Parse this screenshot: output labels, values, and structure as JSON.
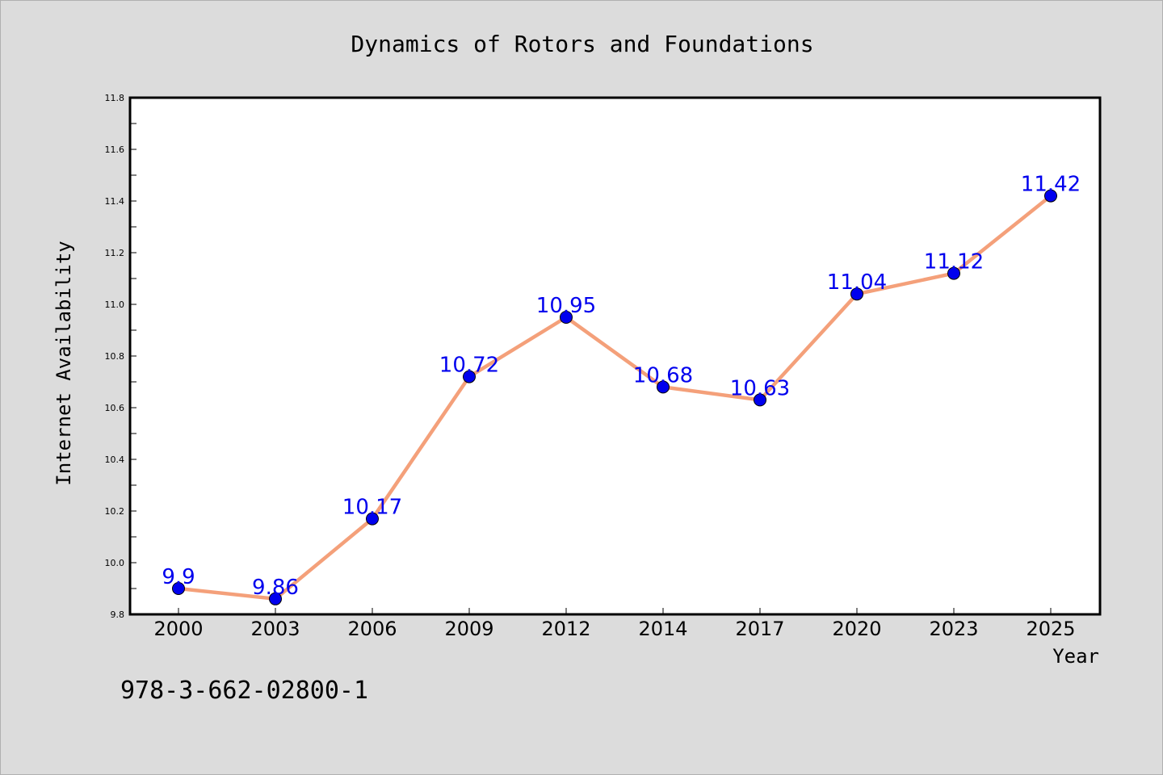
{
  "chart_data": {
    "type": "line",
    "title": "Dynamics of Rotors and Foundations",
    "xlabel": "Year",
    "ylabel": "Internet Availability",
    "categories": [
      "2000",
      "2003",
      "2006",
      "2009",
      "2012",
      "2014",
      "2017",
      "2020",
      "2023",
      "2025"
    ],
    "values": [
      9.9,
      9.86,
      10.17,
      10.72,
      10.95,
      10.68,
      10.63,
      11.04,
      11.12,
      11.42
    ],
    "data_labels": [
      "9.9",
      "9.86",
      "10.17",
      "10.72",
      "10.95",
      "10.68",
      "10.63",
      "11.04",
      "11.12",
      "11.42"
    ],
    "ylim": [
      9.8,
      11.8
    ],
    "yticks": [
      "9.8",
      "10.0",
      "10.2",
      "10.4",
      "10.6",
      "10.8",
      "11.0",
      "11.2",
      "11.4",
      "11.6",
      "11.8"
    ],
    "grid": false,
    "line_color": "#f4a07a",
    "marker_color": "#0000ee",
    "label_color": "#0000ee"
  },
  "footer_note": "978-3-662-02800-1"
}
